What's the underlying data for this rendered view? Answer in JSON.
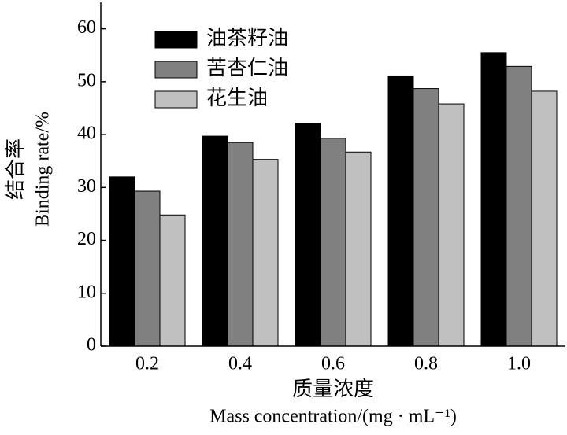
{
  "chart_data": {
    "type": "bar",
    "ylabel": [
      "结合率",
      "Binding rate/%"
    ],
    "xlabel": [
      "质量浓度",
      "Mass concentration/(mg · mL⁻¹)"
    ],
    "categories": [
      "0.2",
      "0.4",
      "0.6",
      "0.8",
      "1.0"
    ],
    "series": [
      {
        "name": "油茶籽油",
        "color": "#000000",
        "values": [
          32.0,
          39.7,
          42.1,
          51.1,
          55.5
        ]
      },
      {
        "name": "苦杏仁油",
        "color": "#808080",
        "values": [
          29.3,
          38.5,
          39.3,
          48.7,
          52.9
        ]
      },
      {
        "name": "花生油",
        "color": "#c0c0c0",
        "values": [
          24.8,
          35.3,
          36.7,
          45.8,
          48.2
        ]
      }
    ],
    "ylim": [
      0,
      65
    ],
    "yticks": [
      0,
      10,
      20,
      30,
      40,
      50,
      60
    ],
    "legend": "upper left"
  }
}
